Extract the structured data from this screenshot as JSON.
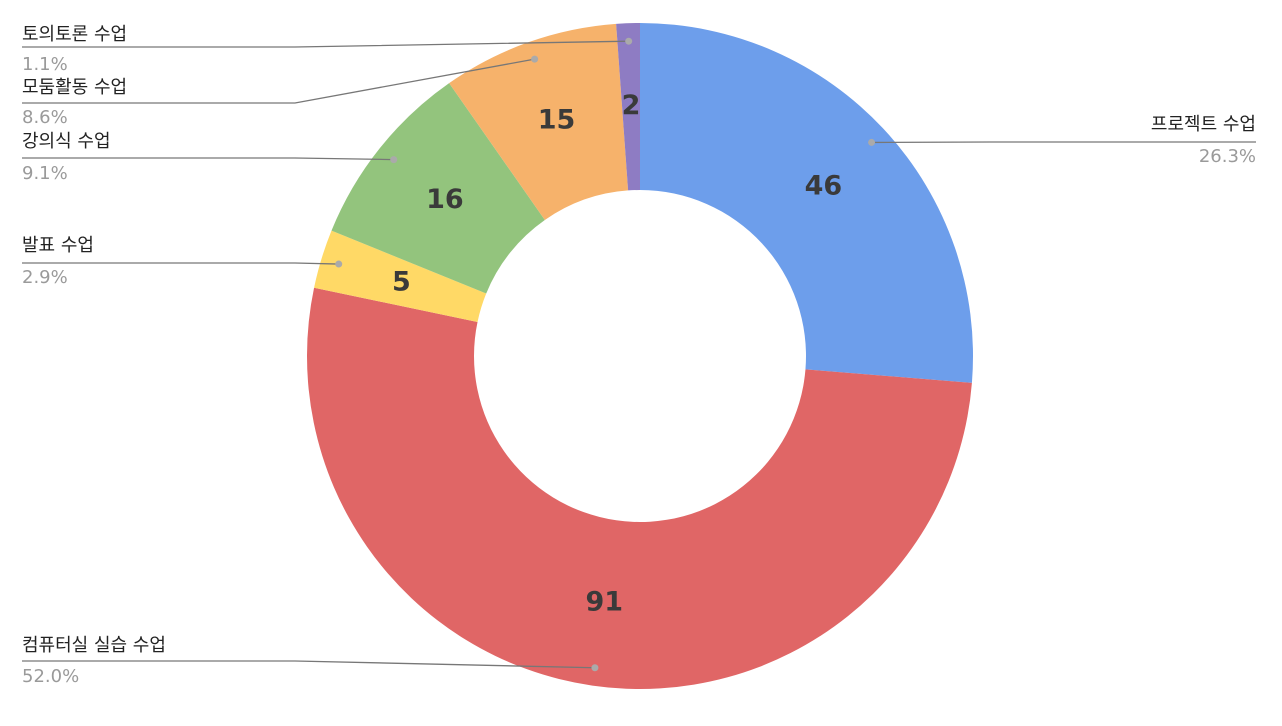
{
  "chart_data": {
    "type": "donut",
    "categories": [
      "프로젝트 수업",
      "컴퓨터실 실습 수업",
      "발표 수업",
      "강의식 수업",
      "모둠활동 수업",
      "토의토론 수업"
    ],
    "values": [
      46,
      91,
      5,
      16,
      15,
      2
    ],
    "percent_labels": [
      "26.3%",
      "52.0%",
      "2.9%",
      "9.1%",
      "8.6%",
      "1.1%"
    ],
    "colors": [
      "#6d9eeb",
      "#e06666",
      "#ffd966",
      "#93c47d",
      "#f6b26b",
      "#8e7cc3"
    ]
  }
}
